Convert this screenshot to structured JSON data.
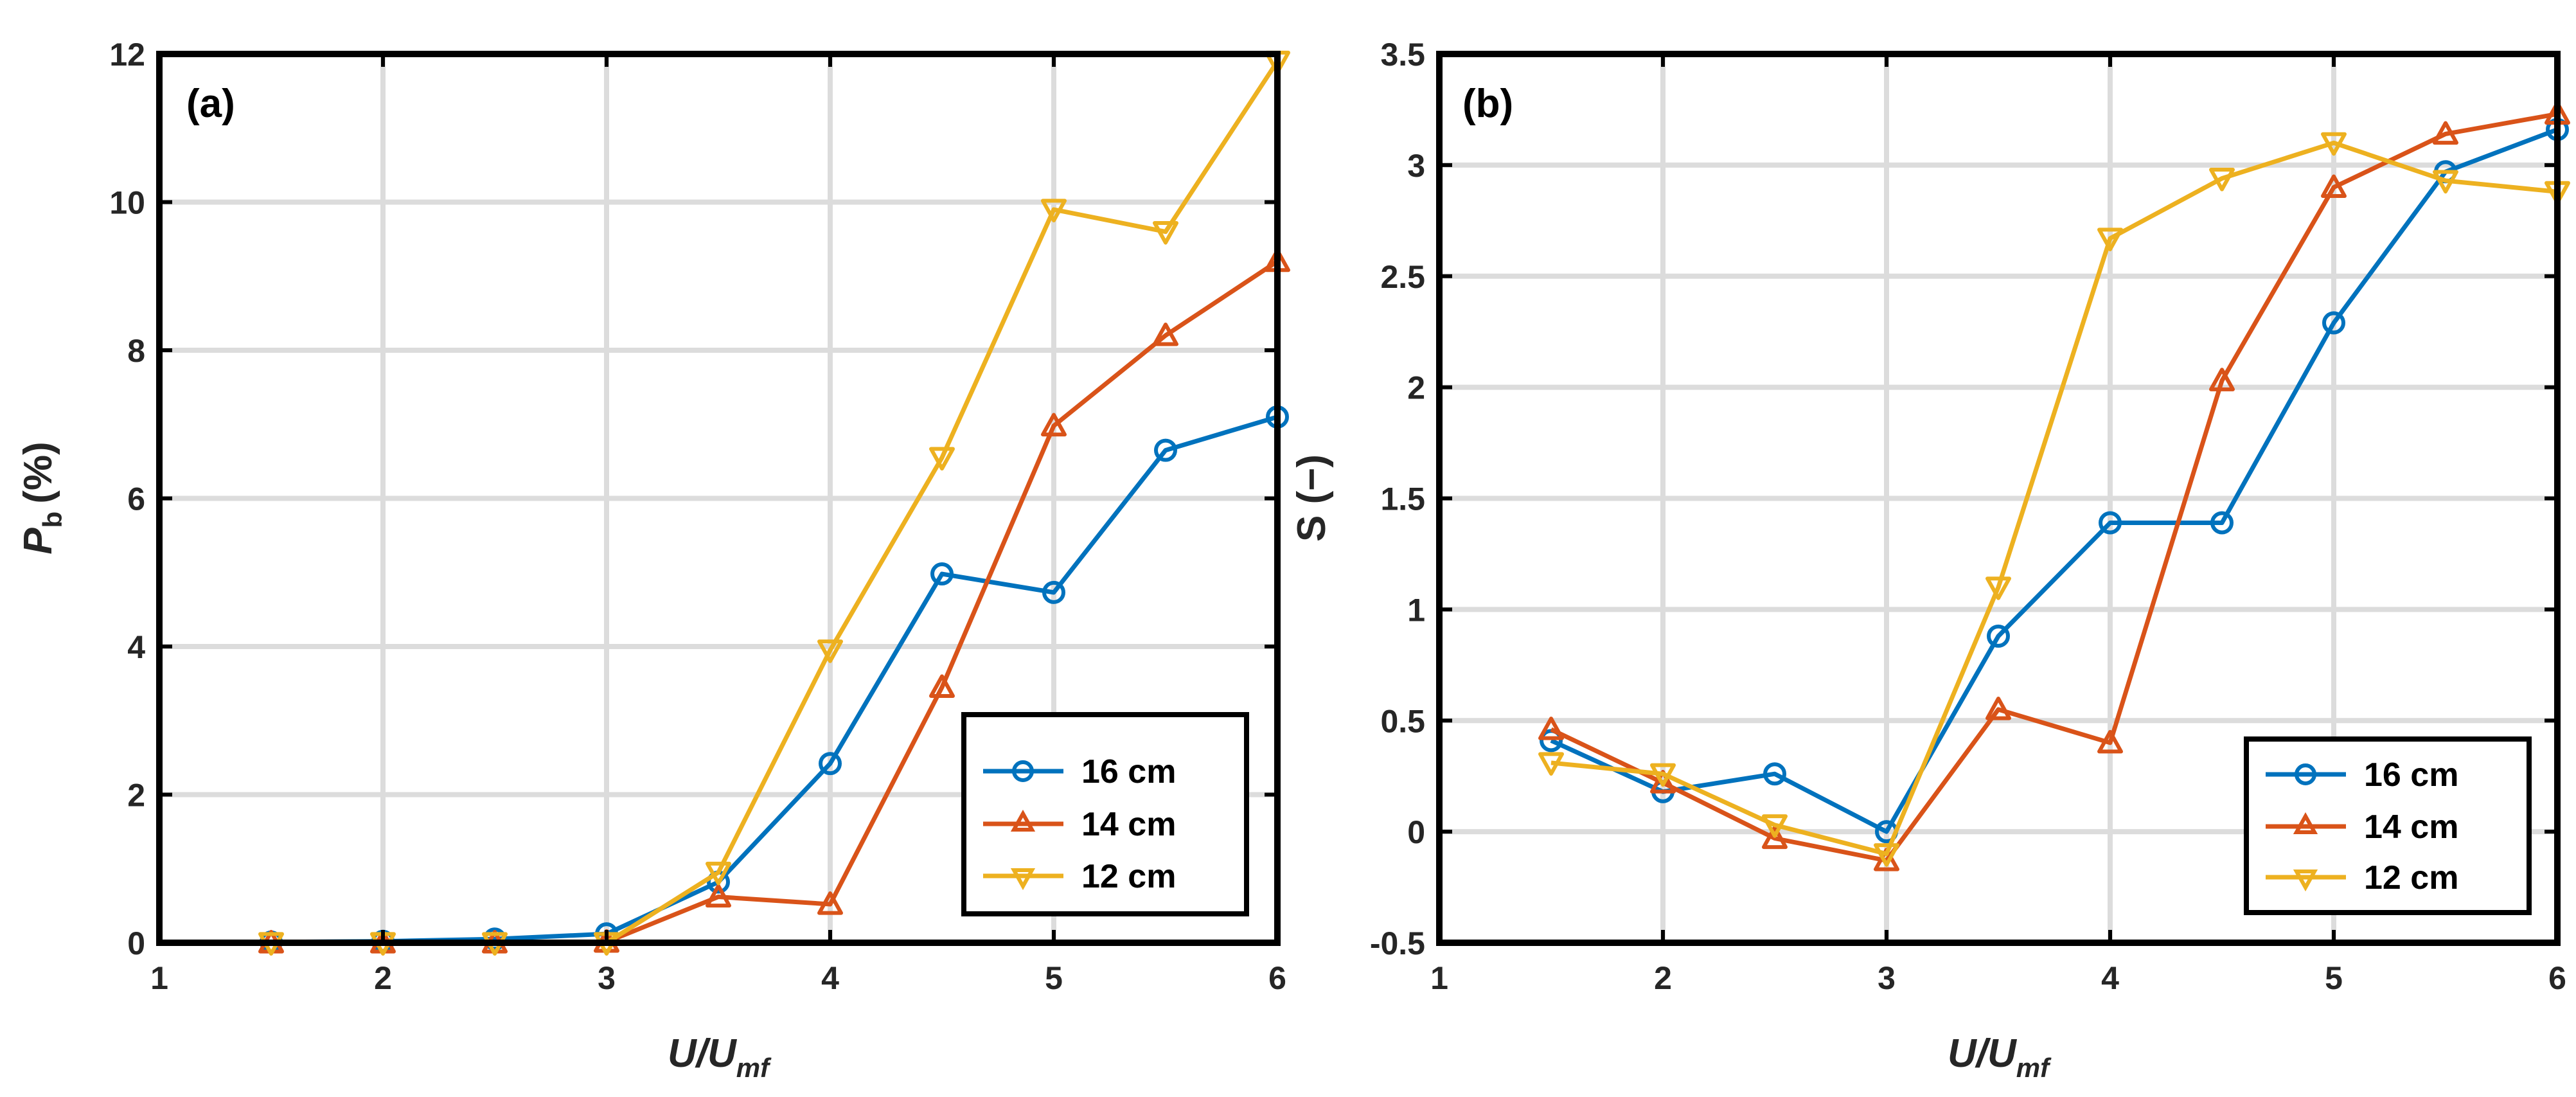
{
  "chart_data": [
    {
      "type": "line",
      "panel_label": "(a)",
      "xlabel": "U/U",
      "xlabel_sub": "mf",
      "ylabel_main": "P",
      "ylabel_sub": "b",
      "ylabel_unit": "(%)",
      "xlim": [
        1,
        6
      ],
      "ylim": [
        0,
        12
      ],
      "xticks": [
        1,
        2,
        3,
        4,
        5,
        6
      ],
      "yticks": [
        0,
        2,
        4,
        6,
        8,
        10,
        12
      ],
      "xtick_labels": [
        "1",
        "2",
        "3",
        "4",
        "5",
        "6"
      ],
      "ytick_labels": [
        "0",
        "2",
        "4",
        "6",
        "8",
        "10",
        "12"
      ],
      "grid": true,
      "legend_position": "bottom-right",
      "x": [
        1.5,
        2,
        2.5,
        3,
        3.5,
        4,
        4.5,
        5,
        5.5,
        6
      ],
      "series": [
        {
          "name": "16 cm",
          "marker": "circle",
          "color": "#0072BD",
          "values": [
            0.01,
            0.02,
            0.05,
            0.12,
            0.82,
            2.42,
            4.98,
            4.73,
            6.65,
            7.1
          ]
        },
        {
          "name": "14 cm",
          "marker": "triangle-up",
          "color": "#D95319",
          "values": [
            0.0,
            0.0,
            0.0,
            0.01,
            0.62,
            0.52,
            3.45,
            6.98,
            8.2,
            9.2
          ]
        },
        {
          "name": "12 cm",
          "marker": "triangle-down",
          "color": "#EDB120",
          "values": [
            0.0,
            0.0,
            0.0,
            0.0,
            0.95,
            3.95,
            6.55,
            9.9,
            9.6,
            11.9
          ]
        }
      ]
    },
    {
      "type": "line",
      "panel_label": "(b)",
      "xlabel": "U/U",
      "xlabel_sub": "mf",
      "ylabel_main": "S (−)",
      "xlim": [
        1,
        6
      ],
      "ylim": [
        -0.5,
        3.5
      ],
      "xticks": [
        1,
        2,
        3,
        4,
        5,
        6
      ],
      "yticks": [
        -0.5,
        0,
        0.5,
        1,
        1.5,
        2,
        2.5,
        3,
        3.5
      ],
      "xtick_labels": [
        "1",
        "2",
        "3",
        "4",
        "5",
        "6"
      ],
      "ytick_labels": [
        "-0.5",
        "0",
        "0.5",
        "1",
        "1.5",
        "2",
        "2.5",
        "3",
        "3.5"
      ],
      "grid": true,
      "legend_position": "bottom-right",
      "x": [
        1.5,
        2,
        2.5,
        3,
        3.5,
        4,
        4.5,
        5,
        5.5,
        6
      ],
      "series": [
        {
          "name": "16 cm",
          "marker": "circle",
          "color": "#0072BD",
          "values": [
            0.41,
            0.18,
            0.26,
            0.0,
            0.88,
            1.39,
            1.39,
            2.29,
            2.97,
            3.16
          ]
        },
        {
          "name": "14 cm",
          "marker": "triangle-up",
          "color": "#D95319",
          "values": [
            0.46,
            0.22,
            -0.03,
            -0.13,
            0.55,
            0.4,
            2.03,
            2.9,
            3.14,
            3.23
          ]
        },
        {
          "name": "12 cm",
          "marker": "triangle-down",
          "color": "#EDB120",
          "values": [
            0.31,
            0.26,
            0.03,
            -0.1,
            1.1,
            2.67,
            2.94,
            3.1,
            2.93,
            2.88
          ]
        }
      ]
    }
  ]
}
